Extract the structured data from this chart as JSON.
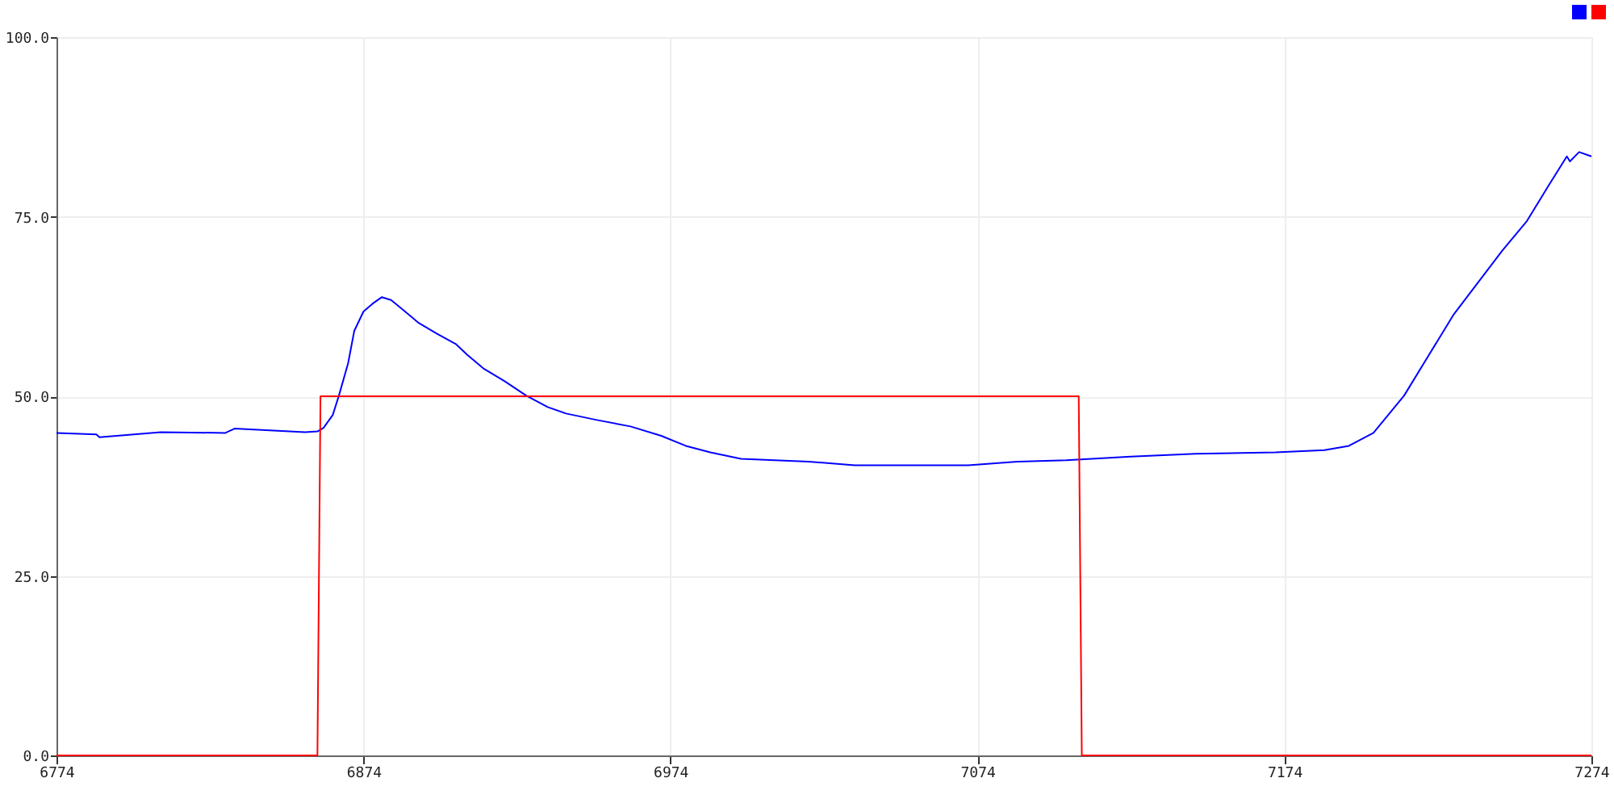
{
  "chart_data": {
    "type": "line",
    "xlim": [
      6774,
      7274
    ],
    "xticks": [
      6774,
      6874,
      6974,
      7074,
      7174,
      7274
    ],
    "ylim": [
      0,
      100
    ],
    "yticks": [
      {
        "value": 0,
        "label": "0.0"
      },
      {
        "value": 25,
        "label": "25.0"
      },
      {
        "value": 50,
        "label": "50.0"
      },
      {
        "value": 75,
        "label": "75.0"
      },
      {
        "value": 100,
        "label": "100.0"
      }
    ],
    "grid": true,
    "line_style": "solid",
    "marker": "none",
    "series": [
      {
        "color": "#0000ff",
        "x": [
          6774,
          6787,
          6788,
          6808,
          6829,
          6832,
          6855,
          6859,
          6861,
          6864,
          6866,
          6869,
          6871,
          6874,
          6877,
          6880,
          6883,
          6887,
          6892,
          6898,
          6904,
          6908,
          6913,
          6920,
          6927,
          6934,
          6940,
          6950,
          6961,
          6971,
          6979,
          6987,
          6997,
          7019,
          7034,
          7055,
          7071,
          7087,
          7103,
          7124,
          7145,
          7171,
          7187,
          7195,
          7203,
          7213,
          7221,
          7229,
          7237,
          7245,
          7253,
          7260,
          7266,
          7267,
          7270,
          7274
        ],
        "values": [
          44.9,
          44.7,
          44.3,
          45,
          44.9,
          45.5,
          45,
          45.1,
          45.6,
          47.4,
          50.1,
          54.6,
          59.1,
          61.8,
          62.9,
          63.8,
          63.4,
          62,
          60.2,
          58.7,
          57.3,
          55.7,
          53.9,
          52.1,
          50.1,
          48.5,
          47.6,
          46.7,
          45.8,
          44.5,
          43.1,
          42.2,
          41.3,
          40.9,
          40.4,
          40.4,
          40.4,
          40.9,
          41.1,
          41.6,
          42,
          42.2,
          42.5,
          43.1,
          44.9,
          50.1,
          55.7,
          61.3,
          65.8,
          70.3,
          74.4,
          79.3,
          83.4,
          82.7,
          84,
          83.4
        ]
      },
      {
        "color": "#ff0000",
        "x": [
          6774,
          6859,
          6860,
          7107,
          7108,
          7274
        ],
        "values": [
          0,
          0,
          50,
          50,
          0,
          0
        ]
      }
    ]
  }
}
